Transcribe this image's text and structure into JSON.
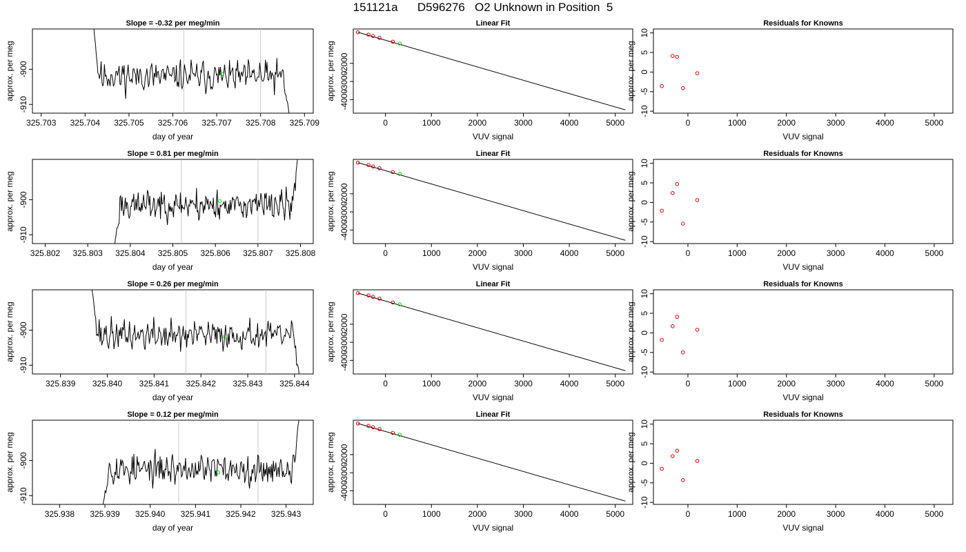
{
  "figure": {
    "title": "151121a      D596276   O2 Unknown in Position  5"
  },
  "colors": {
    "trace": "#000000",
    "unknown": "#00dd00",
    "known": "#cc0000",
    "marker_line": "#c8c8c8"
  },
  "chart_data": [
    {
      "type": "line",
      "title": "Slope =  -0.32  per meg/min",
      "xlabel": "day of year",
      "ylabel": "approx. per meg",
      "xlim": [
        325.7028,
        325.7092
      ],
      "ylim": [
        -912.5,
        -888.5
      ],
      "xticks": [
        "325.703",
        "325.704",
        "325.705",
        "325.706",
        "325.707",
        "325.708",
        "325.709"
      ],
      "yticks": [
        "-900",
        "-910"
      ],
      "vlines": [
        325.70625,
        325.708
      ],
      "unknown_point": {
        "x": 325.70712,
        "y": -901.3
      },
      "series": [
        {
          "x_start": 325.70418,
          "x_end": 325.70865,
          "seed": 11,
          "edge_start": -886.0,
          "edge_end": -912.8,
          "mean": -902.0,
          "noise": 2.3
        }
      ]
    },
    {
      "type": "scatter",
      "title": "Linear Fit",
      "xlabel": "VUV signal",
      "ylabel": "approx. per meg",
      "xlim": [
        -700,
        5380
      ],
      "ylim": [
        -4750,
        -100
      ],
      "xticks": [
        "0",
        "1000",
        "2000",
        "3000",
        "4000",
        "5000"
      ],
      "yticks": [
        "-2000",
        "-3000",
        "-4000"
      ],
      "fit_line": {
        "x": [
          -600,
          5220
        ],
        "y": [
          -280,
          -4570
        ]
      },
      "points": [
        {
          "x": -600,
          "y": -280
        },
        {
          "x": -370,
          "y": -410
        },
        {
          "x": -270,
          "y": -490
        },
        {
          "x": -130,
          "y": -590
        },
        {
          "x": 160,
          "y": -800
        }
      ],
      "unknown_point": {
        "x": 310,
        "y": -902
      }
    },
    {
      "type": "scatter",
      "title": "Residuals for Knowns",
      "xlabel": "VUV signal",
      "ylabel": "approx. per meg",
      "xlim": [
        -700,
        5380
      ],
      "ylim": [
        -10.5,
        11
      ],
      "xticks": [
        "0",
        "1000",
        "2000",
        "3000",
        "4000",
        "5000"
      ],
      "yticks": [
        "-10",
        "-5",
        "0",
        "5",
        "10"
      ],
      "points": [
        {
          "x": -530,
          "y": -3.6
        },
        {
          "x": -310,
          "y": 4.1
        },
        {
          "x": -220,
          "y": 3.9
        },
        {
          "x": -100,
          "y": -4.1
        },
        {
          "x": 190,
          "y": -0.3
        }
      ]
    },
    {
      "type": "line",
      "title": "Slope =  0.81  per meg/min",
      "xlabel": "day of year",
      "ylabel": "approx. per meg",
      "xlim": [
        325.8017,
        325.8083
      ],
      "ylim": [
        -912.5,
        -888.5
      ],
      "xticks": [
        "325.802",
        "325.803",
        "325.804",
        "325.805",
        "325.806",
        "325.807",
        "325.808"
      ],
      "yticks": [
        "-900",
        "-910"
      ],
      "vlines": [
        325.8052,
        325.807
      ],
      "unknown_point": {
        "x": 325.8061,
        "y": -900.4
      },
      "series": [
        {
          "x_start": 325.80363,
          "x_end": 325.80795,
          "seed": 23,
          "edge_start": -913.5,
          "edge_end": -886.0,
          "mean": -901.5,
          "noise": 2.3
        }
      ]
    },
    {
      "type": "scatter",
      "title": "Linear Fit",
      "xlabel": "VUV signal",
      "ylabel": "approx. per meg",
      "xlim": [
        -700,
        5380
      ],
      "ylim": [
        -4750,
        -100
      ],
      "xticks": [
        "0",
        "1000",
        "2000",
        "3000",
        "4000",
        "5000"
      ],
      "yticks": [
        "-2000",
        "-3000",
        "-4000"
      ],
      "fit_line": {
        "x": [
          -600,
          5220
        ],
        "y": [
          -280,
          -4570
        ]
      },
      "points": [
        {
          "x": -600,
          "y": -280
        },
        {
          "x": -370,
          "y": -410
        },
        {
          "x": -270,
          "y": -490
        },
        {
          "x": -130,
          "y": -590
        },
        {
          "x": 160,
          "y": -800
        }
      ],
      "unknown_point": {
        "x": 310,
        "y": -902
      }
    },
    {
      "type": "scatter",
      "title": "Residuals for Knowns",
      "xlabel": "VUV signal",
      "ylabel": "approx. per meg",
      "xlim": [
        -700,
        5380
      ],
      "ylim": [
        -10.5,
        11
      ],
      "xticks": [
        "0",
        "1000",
        "2000",
        "3000",
        "4000",
        "5000"
      ],
      "yticks": [
        "-10",
        "-5",
        "0",
        "5",
        "10"
      ],
      "points": [
        {
          "x": -530,
          "y": -2.1
        },
        {
          "x": -310,
          "y": 2.4
        },
        {
          "x": -220,
          "y": 4.7
        },
        {
          "x": -100,
          "y": -5.4
        },
        {
          "x": 190,
          "y": 0.6
        }
      ]
    },
    {
      "type": "line",
      "title": "Slope =  0.26  per meg/min",
      "xlabel": "day of year",
      "ylabel": "approx. per meg",
      "xlim": [
        325.8384,
        325.8444
      ],
      "ylim": [
        -912.5,
        -888.5
      ],
      "xticks": [
        "325.839",
        "325.840",
        "325.841",
        "325.842",
        "325.843",
        "325.844"
      ],
      "yticks": [
        "-900",
        "-910"
      ],
      "vlines": [
        325.84168,
        325.84339
      ],
      "unknown_point": {
        "x": 325.84251,
        "y": -901.9
      },
      "series": [
        {
          "x_start": 325.83966,
          "x_end": 325.8441,
          "seed": 37,
          "edge_start": -886.5,
          "edge_end": -912.8,
          "mean": -901.5,
          "noise": 2.3
        }
      ]
    },
    {
      "type": "scatter",
      "title": "Linear Fit",
      "xlabel": "VUV signal",
      "ylabel": "approx. per meg",
      "xlim": [
        -700,
        5380
      ],
      "ylim": [
        -4750,
        -100
      ],
      "xticks": [
        "0",
        "1000",
        "2000",
        "3000",
        "4000",
        "5000"
      ],
      "yticks": [
        "-2000",
        "-3000",
        "-4000"
      ],
      "fit_line": {
        "x": [
          -600,
          5220
        ],
        "y": [
          -280,
          -4570
        ]
      },
      "points": [
        {
          "x": -600,
          "y": -280
        },
        {
          "x": -370,
          "y": -410
        },
        {
          "x": -270,
          "y": -490
        },
        {
          "x": -130,
          "y": -590
        },
        {
          "x": 160,
          "y": -800
        }
      ],
      "unknown_point": {
        "x": 310,
        "y": -902
      }
    },
    {
      "type": "scatter",
      "title": "Residuals for Knowns",
      "xlabel": "VUV signal",
      "ylabel": "approx. per meg",
      "xlim": [
        -700,
        5380
      ],
      "ylim": [
        -10.5,
        11
      ],
      "xticks": [
        "0",
        "1000",
        "2000",
        "3000",
        "4000",
        "5000"
      ],
      "yticks": [
        "-10",
        "-5",
        "0",
        "5",
        "10"
      ],
      "points": [
        {
          "x": -530,
          "y": -1.8
        },
        {
          "x": -310,
          "y": 1.7
        },
        {
          "x": -220,
          "y": 4.1
        },
        {
          "x": -100,
          "y": -5.0
        },
        {
          "x": 190,
          "y": 0.8
        }
      ]
    },
    {
      "type": "line",
      "title": "Slope =  0.12  per meg/min",
      "xlabel": "day of year",
      "ylabel": "approx. per meg",
      "xlim": [
        325.9374,
        325.9436
      ],
      "ylim": [
        -912.5,
        -888.5
      ],
      "xticks": [
        "325.938",
        "325.939",
        "325.940",
        "325.941",
        "325.942",
        "325.943"
      ],
      "yticks": [
        "-900",
        "-910"
      ],
      "vlines": [
        325.94063,
        325.94238
      ],
      "unknown_point": {
        "x": 325.9415,
        "y": -903.4
      },
      "series": [
        {
          "x_start": 325.93895,
          "x_end": 325.9433,
          "seed": 53,
          "edge_start": -913.5,
          "edge_end": -886.0,
          "mean": -902.5,
          "noise": 2.3
        }
      ]
    },
    {
      "type": "scatter",
      "title": "Linear Fit",
      "xlabel": "VUV signal",
      "ylabel": "approx. per meg",
      "xlim": [
        -700,
        5380
      ],
      "ylim": [
        -4750,
        -100
      ],
      "xticks": [
        "0",
        "1000",
        "2000",
        "3000",
        "4000",
        "5000"
      ],
      "yticks": [
        "-2000",
        "-3000",
        "-4000"
      ],
      "fit_line": {
        "x": [
          -600,
          5220
        ],
        "y": [
          -280,
          -4570
        ]
      },
      "points": [
        {
          "x": -600,
          "y": -280
        },
        {
          "x": -370,
          "y": -410
        },
        {
          "x": -270,
          "y": -490
        },
        {
          "x": -130,
          "y": -590
        },
        {
          "x": 160,
          "y": -800
        }
      ],
      "unknown_point": {
        "x": 310,
        "y": -902
      }
    },
    {
      "type": "scatter",
      "title": "Residuals for Knowns",
      "xlabel": "VUV signal",
      "ylabel": "approx. per meg",
      "xlim": [
        -700,
        5380
      ],
      "ylim": [
        -10.5,
        11
      ],
      "xticks": [
        "0",
        "1000",
        "2000",
        "3000",
        "4000",
        "5000"
      ],
      "yticks": [
        "-10",
        "-5",
        "0",
        "5",
        "10"
      ],
      "points": [
        {
          "x": -530,
          "y": -1.4
        },
        {
          "x": -310,
          "y": 1.8
        },
        {
          "x": -220,
          "y": 3.2
        },
        {
          "x": -100,
          "y": -4.3
        },
        {
          "x": 190,
          "y": 0.6
        }
      ]
    }
  ]
}
